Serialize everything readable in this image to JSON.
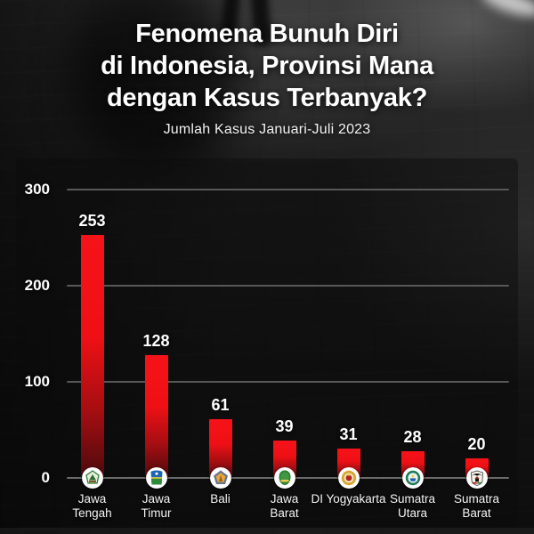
{
  "header": {
    "title_lines": [
      "Fenomena Bunuh Diri",
      "di Indonesia, Provinsi Mana",
      "dengan Kasus Terbanyak?"
    ],
    "subtitle": "Jumlah Kasus Januari-Juli 2023"
  },
  "chart_data": {
    "type": "bar",
    "title": "Fenomena Bunuh Diri di Indonesia, Provinsi Mana dengan Kasus Terbanyak?",
    "subtitle": "Jumlah Kasus Januari-Juli 2023",
    "categories": [
      "Jawa Tengah",
      "Jawa Timur",
      "Bali",
      "Jawa Barat",
      "DI Yogyakarta",
      "Sumatra Utara",
      "Sumatra Barat"
    ],
    "category_label_lines": [
      [
        "Jawa",
        "Tengah"
      ],
      [
        "Jawa",
        "Timur"
      ],
      [
        "Bali"
      ],
      [
        "Jawa",
        "Barat"
      ],
      [
        "DI Yogyakarta"
      ],
      [
        "Sumatra",
        "Utara"
      ],
      [
        "Sumatra",
        "Barat"
      ]
    ],
    "values": [
      253,
      128,
      61,
      39,
      31,
      28,
      20
    ],
    "yticks": [
      0,
      100,
      200,
      300
    ],
    "ylim": [
      0,
      300
    ],
    "xlabel": "",
    "ylabel": "",
    "grid": "horizontal",
    "legend": "none",
    "bar_color_top": "#f51318",
    "bar_color_bottom": "#4c0a0c",
    "emblems": [
      "jawa-tengah-emblem",
      "jawa-timur-emblem",
      "bali-emblem",
      "jawa-barat-emblem",
      "di-yogyakarta-emblem",
      "sumatra-utara-emblem",
      "sumatra-barat-emblem"
    ]
  },
  "colors": {
    "background": "#161616",
    "bar_red": "#ee1015",
    "text": "#ffffff",
    "gridline": "#585858"
  }
}
